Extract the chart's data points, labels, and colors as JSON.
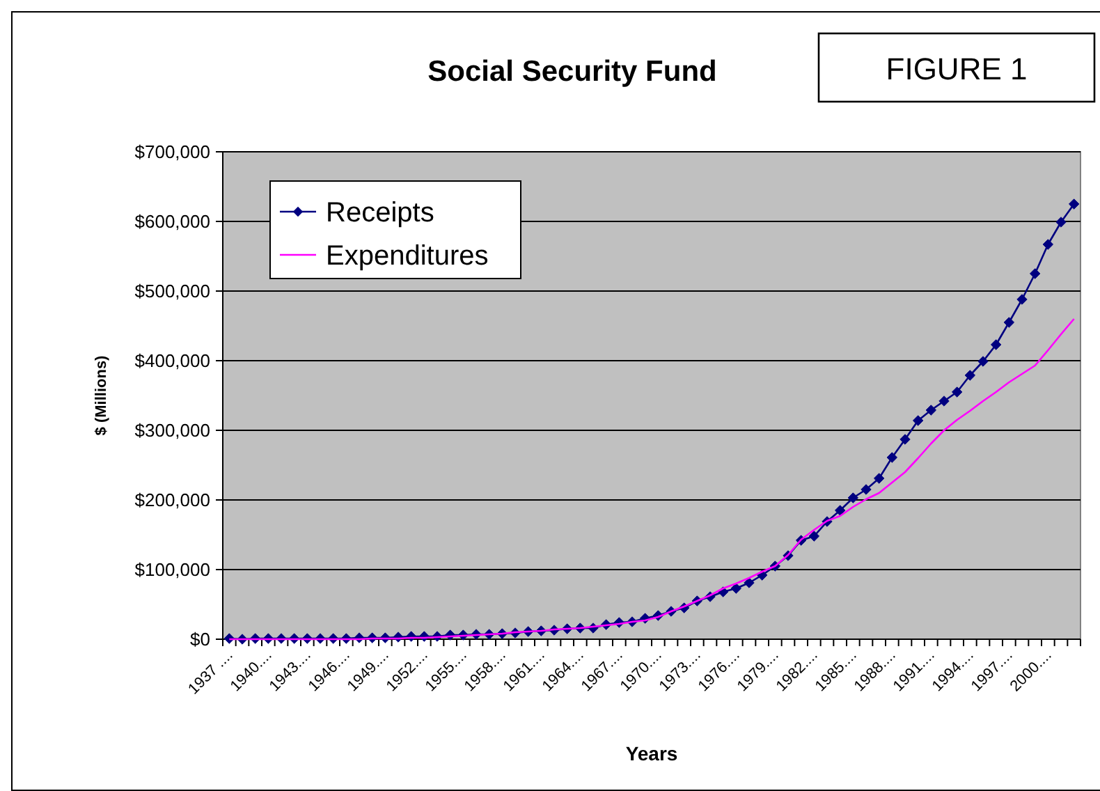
{
  "chart_data": {
    "type": "line",
    "title": "Social Security Fund",
    "annotations": [
      "FIGURE 1"
    ],
    "xlabel": "Years",
    "ylabel": "$ (Millions)",
    "categories": [
      "1937 ....",
      null,
      null,
      "1940....",
      null,
      null,
      "1943....",
      null,
      null,
      "1946....",
      null,
      null,
      "1949....",
      null,
      null,
      "1952....",
      null,
      null,
      "1955....",
      null,
      null,
      "1958....",
      null,
      null,
      "1961....",
      null,
      null,
      "1964....",
      null,
      null,
      "1967....",
      null,
      null,
      "1970....",
      null,
      null,
      "1973....",
      null,
      null,
      "1976....",
      null,
      null,
      "1979....",
      null,
      null,
      "1982....",
      null,
      null,
      "1985....",
      null,
      null,
      "1988....",
      null,
      null,
      "1991....",
      null,
      null,
      "1994....",
      null,
      null,
      "1997....",
      null,
      null,
      "2000....",
      null,
      null
    ],
    "series": [
      {
        "name": "Receipts",
        "color": "#000080",
        "marker": "diamond",
        "values": [
          1000,
          0,
          1000,
          1000,
          1000,
          1000,
          1000,
          1000,
          1000,
          1000,
          2000,
          2000,
          2000,
          3000,
          4000,
          4000,
          4000,
          6000,
          6000,
          7000,
          7000,
          8000,
          9000,
          11000,
          12000,
          13000,
          15000,
          16000,
          16000,
          21000,
          24000,
          25000,
          30000,
          34000,
          40000,
          45000,
          55000,
          61000,
          68000,
          73000,
          81000,
          92000,
          105000,
          120000,
          142000,
          148000,
          169000,
          185000,
          203000,
          215000,
          231000,
          261000,
          287000,
          314000,
          329000,
          342000,
          355000,
          379000,
          399000,
          423000,
          455000,
          488000,
          525000,
          567000,
          599000,
          625000
        ]
      },
      {
        "name": "Expenditures",
        "color": "#ff00ff",
        "marker": "none",
        "values": [
          0,
          0,
          0,
          0,
          0,
          0,
          0,
          0,
          0,
          0,
          0,
          1000,
          1000,
          1000,
          2000,
          2000,
          3000,
          4000,
          5000,
          6000,
          7000,
          8000,
          10000,
          11000,
          12000,
          14000,
          15000,
          16000,
          18000,
          20000,
          22000,
          25000,
          27000,
          32000,
          40000,
          47000,
          55000,
          63000,
          73000,
          80000,
          88000,
          97000,
          105000,
          121000,
          143000,
          157000,
          170000,
          177000,
          190000,
          201000,
          210000,
          225000,
          240000,
          260000,
          281000,
          300000,
          315000,
          328000,
          342000,
          355000,
          369000,
          381000,
          393000,
          415000,
          438000,
          460000
        ]
      }
    ],
    "ylim": [
      0,
      700000
    ],
    "yticks": [
      {
        "value": 0,
        "label": "$0"
      },
      {
        "value": 100000,
        "label": "$100,000"
      },
      {
        "value": 200000,
        "label": "$200,000"
      },
      {
        "value": 300000,
        "label": "$300,000"
      },
      {
        "value": 400000,
        "label": "$400,000"
      },
      {
        "value": 500000,
        "label": "$500,000"
      },
      {
        "value": 600000,
        "label": "$600,000"
      },
      {
        "value": 700000,
        "label": "$700,000"
      }
    ],
    "grid": "y",
    "legend": "top left",
    "line_style": "solid"
  }
}
